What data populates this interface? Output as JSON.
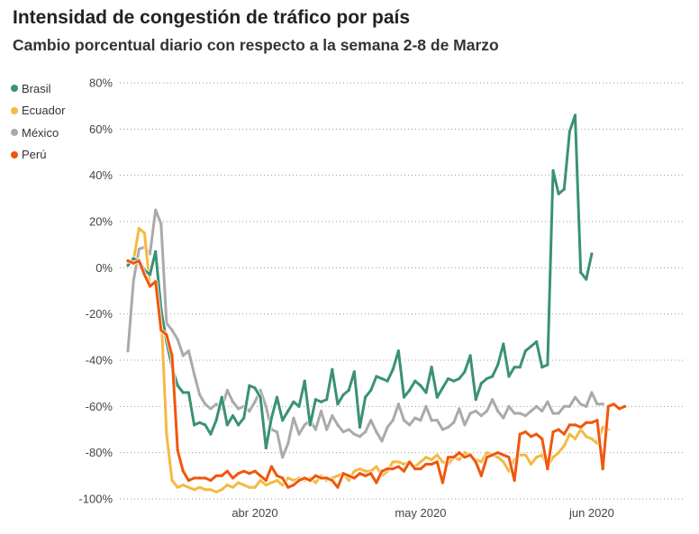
{
  "chart_data": {
    "type": "line",
    "title": "Intensidad de congestión de tráfico por país",
    "subtitle": "Cambio porcentual diario con respecto a la semana 2-8 de Marzo",
    "xlabel": "",
    "ylabel": "",
    "ylim": [
      -100,
      80
    ],
    "y_ticks": [
      80,
      60,
      40,
      20,
      0,
      -20,
      -40,
      -60,
      -80,
      -100
    ],
    "y_tick_labels": [
      "80%",
      "60%",
      "40%",
      "20%",
      "0%",
      "-20%",
      "-40%",
      "-60%",
      "-80%",
      "-100%"
    ],
    "x_ticks": [
      {
        "label": "abr 2020",
        "day": 23
      },
      {
        "label": "may 2020",
        "day": 53
      },
      {
        "label": "jun 2020",
        "day": 84
      }
    ],
    "x_range": [
      0,
      101
    ],
    "x_start_label": "2020-03-09",
    "series": [
      {
        "name": "Brasil",
        "color": "#3a9272",
        "values": [
          1,
          4,
          3,
          -1,
          -3,
          7,
          -18,
          -32,
          -43,
          -51,
          -54,
          -54,
          -68,
          -67,
          -68,
          -72,
          -66,
          -56,
          -68,
          -64,
          -68,
          -65,
          -51,
          -52,
          -56,
          -78,
          -65,
          -56,
          -66,
          -62,
          -58,
          -60,
          -49,
          -68,
          -57,
          -58,
          -57,
          -44,
          -59,
          -55,
          -53,
          -45,
          -69,
          -56,
          -53,
          -47,
          -48,
          -49,
          -44,
          -36,
          -56,
          -53,
          -49,
          -51,
          -54,
          -43,
          -56,
          -52,
          -48,
          -49,
          -48,
          -45,
          -38,
          -57,
          -50,
          -48,
          -47,
          -42,
          -33,
          -47,
          -43,
          -43,
          -36,
          -34,
          -32,
          -43,
          -42,
          42,
          32,
          34,
          59,
          66,
          -2,
          -5,
          6
        ]
      },
      {
        "name": "Ecuador",
        "color": "#f5b942",
        "values": [
          2,
          3,
          17,
          15,
          -8,
          -6,
          -19,
          -72,
          -92,
          -95,
          -94,
          -95,
          -96,
          -95,
          -96,
          -96,
          -97,
          -96,
          -94,
          -95,
          -93,
          -94,
          -95,
          -95,
          -92,
          -94,
          -93,
          -92,
          -94,
          -91,
          -92,
          -91,
          -92,
          -91,
          -93,
          -90,
          -92,
          -91,
          -90,
          -89,
          -92,
          -88,
          -87,
          -88,
          -88,
          -86,
          -90,
          -88,
          -84,
          -84,
          -85,
          -84,
          -86,
          -84,
          -82,
          -83,
          -81,
          -84,
          -85,
          -82,
          -83,
          -80,
          -81,
          -83,
          -84,
          -80,
          -81,
          -82,
          -84,
          -88,
          -83,
          -81,
          -81,
          -85,
          -82,
          -81,
          -86,
          -82,
          -80,
          -77,
          -72,
          -74,
          -70,
          -73,
          -74,
          -76,
          -69,
          -70
        ]
      },
      {
        "name": "México",
        "color": "#aaaaaa",
        "values": [
          -36,
          -6,
          8,
          9,
          6,
          25,
          19,
          -24,
          -27,
          -31,
          -38,
          -36,
          -46,
          -55,
          -59,
          -61,
          -59,
          -61,
          -53,
          -58,
          -61,
          -60,
          -62,
          -58,
          -53,
          -60,
          -70,
          -71,
          -82,
          -76,
          -65,
          -72,
          -68,
          -66,
          -70,
          -62,
          -70,
          -64,
          -68,
          -71,
          -70,
          -72,
          -73,
          -71,
          -66,
          -71,
          -75,
          -69,
          -66,
          -59,
          -66,
          -68,
          -65,
          -66,
          -60,
          -66,
          -66,
          -70,
          -69,
          -67,
          -61,
          -68,
          -63,
          -62,
          -64,
          -62,
          -57,
          -62,
          -65,
          -60,
          -63,
          -63,
          -64,
          -62,
          -60,
          -62,
          -58,
          -63,
          -63,
          -60,
          -60,
          -56,
          -59,
          -60,
          -54,
          -59,
          -59
        ]
      },
      {
        "name": "Perú",
        "color": "#f0570d",
        "values": [
          3,
          2,
          3,
          -3,
          -8,
          -6,
          -27,
          -29,
          -38,
          -79,
          -88,
          -92,
          -91,
          -91,
          -91,
          -92,
          -90,
          -90,
          -88,
          -91,
          -89,
          -88,
          -89,
          -88,
          -90,
          -92,
          -86,
          -90,
          -91,
          -95,
          -94,
          -92,
          -91,
          -92,
          -90,
          -91,
          -91,
          -92,
          -95,
          -89,
          -90,
          -91,
          -89,
          -90,
          -89,
          -93,
          -88,
          -87,
          -87,
          -86,
          -88,
          -84,
          -87,
          -87,
          -85,
          -85,
          -84,
          -93,
          -82,
          -82,
          -80,
          -82,
          -81,
          -84,
          -90,
          -82,
          -81,
          -80,
          -81,
          -82,
          -92,
          -72,
          -71,
          -73,
          -72,
          -74,
          -87,
          -71,
          -70,
          -72,
          -68,
          -68,
          -69,
          -67,
          -67,
          -66,
          -87,
          -60,
          -59,
          -61,
          -60
        ]
      }
    ]
  }
}
